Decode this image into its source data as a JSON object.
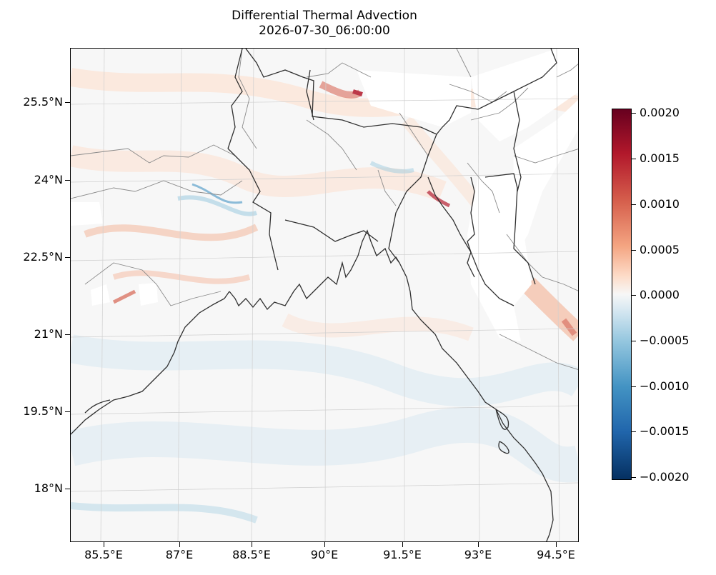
{
  "title": {
    "line1": "Differential Thermal Advection",
    "line2": "2026-07-30_06:00:00"
  },
  "axes": {
    "x_ticks": [
      "85.5°E",
      "87°E",
      "88.5°E",
      "90°E",
      "91.5°E",
      "93°E",
      "94.5°E"
    ],
    "y_ticks": [
      "25.5°N",
      "24°N",
      "22.5°N",
      "21°N",
      "19.5°N",
      "18°N"
    ]
  },
  "colorbar": {
    "colormap": "RdBu_r",
    "range": [
      -0.002,
      0.002
    ],
    "ticks": [
      "0.0020",
      "0.0015",
      "0.0010",
      "0.0005",
      "0.0000",
      "−0.0005",
      "−0.0010",
      "−0.0015",
      "−0.0020"
    ],
    "colors": [
      "#67001f",
      "#b2182b",
      "#d6604d",
      "#f4a582",
      "#fddbc7",
      "#f7f7f7",
      "#d1e5f0",
      "#92c5de",
      "#4393c3",
      "#2166ac",
      "#053061"
    ]
  },
  "map": {
    "features": [
      "coastline",
      "country borders",
      "state borders",
      "gridlines"
    ],
    "missing_data_color": "#ffffff"
  }
}
